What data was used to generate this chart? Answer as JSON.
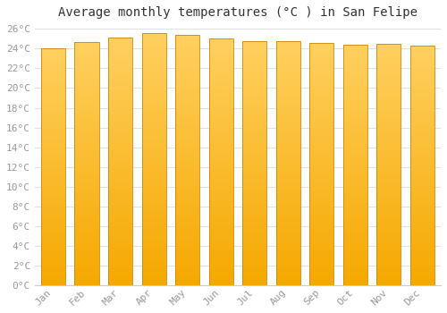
{
  "title": "Average monthly temperatures (°C ) in San Felipe",
  "months": [
    "Jan",
    "Feb",
    "Mar",
    "Apr",
    "May",
    "Jun",
    "Jul",
    "Aug",
    "Sep",
    "Oct",
    "Nov",
    "Dec"
  ],
  "values": [
    24.0,
    24.7,
    25.1,
    25.6,
    25.4,
    25.0,
    24.8,
    24.8,
    24.6,
    24.4,
    24.5,
    24.3
  ],
  "bar_color_bottom": "#F5A800",
  "bar_color_top": "#FFD060",
  "bar_edge_color": "#CC8800",
  "background_color": "#FFFFFF",
  "grid_color": "#E0E0E8",
  "ylim": [
    0,
    26
  ],
  "ytick_step": 2,
  "title_fontsize": 10,
  "tick_fontsize": 8,
  "text_color": "#999999"
}
